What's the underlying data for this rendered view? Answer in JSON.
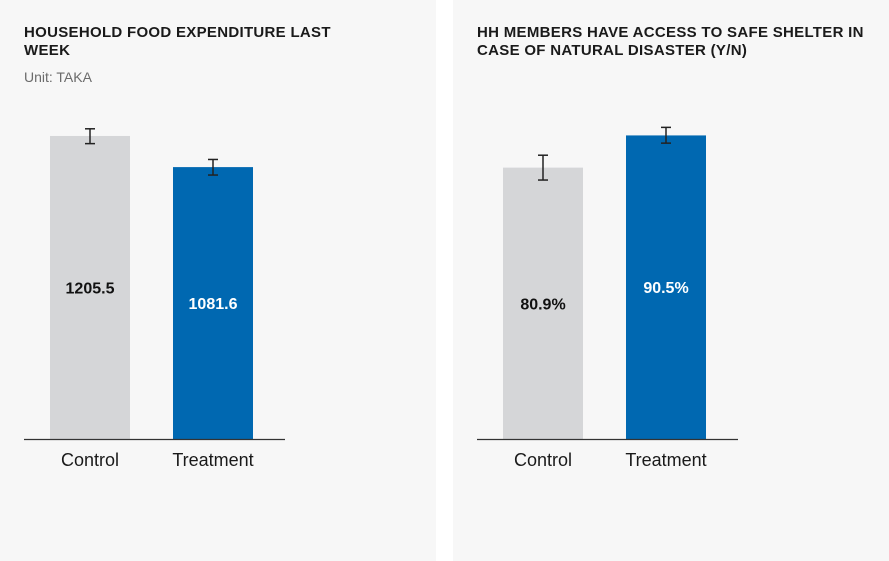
{
  "colors": {
    "control": "#d5d6d8",
    "treatment": "#0068b1",
    "label_on_control": "#111111",
    "label_on_treatment": "#ffffff",
    "axis": "#333333",
    "error_bar": "#222222"
  },
  "chart_data": [
    {
      "type": "bar",
      "title": "HOUSEHOLD FOOD EXPENDITURE LAST WEEK",
      "subtitle": "Unit: TAKA",
      "categories": [
        "Control",
        "Treatment"
      ],
      "values": [
        1205.5,
        1081.6
      ],
      "value_labels": [
        "1205.5",
        "1081.6"
      ],
      "error": [
        {
          "low": 1175,
          "high": 1234
        },
        {
          "low": 1050,
          "high": 1112
        }
      ],
      "ylim": [
        0,
        1265
      ],
      "grid": false
    },
    {
      "type": "bar",
      "title": "HH MEMBERS HAVE ACCESS TO SAFE SHELTER IN CASE OF NATURAL DISASTER (Y/N)",
      "subtitle": "",
      "categories": [
        "Control",
        "Treatment"
      ],
      "values": [
        80.9,
        90.5
      ],
      "value_labels": [
        "80.9%",
        "90.5%"
      ],
      "error": [
        {
          "low": 77.2,
          "high": 84.6
        },
        {
          "low": 88.2,
          "high": 92.9
        }
      ],
      "ylim": [
        0,
        94.8
      ],
      "grid": false
    }
  ]
}
